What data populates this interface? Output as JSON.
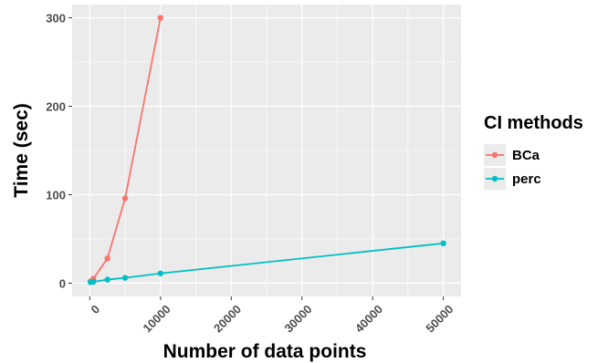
{
  "chart_data": {
    "type": "line",
    "xlabel": "Number of data points",
    "ylabel": "Time (sec)",
    "xlim": [
      -2500,
      52500
    ],
    "ylim": [
      -15,
      315
    ],
    "x_ticks": [
      0,
      10000,
      20000,
      30000,
      40000,
      50000
    ],
    "y_ticks": [
      0,
      100,
      200,
      300
    ],
    "grid": true,
    "legend": {
      "title": "CI methods",
      "placement": "right"
    },
    "series": [
      {
        "name": "BCa",
        "color": "#f8766d",
        "points": [
          [
            100,
            2
          ],
          [
            500,
            5
          ],
          [
            2500,
            28
          ],
          [
            5000,
            96
          ],
          [
            10000,
            300
          ]
        ]
      },
      {
        "name": "perc",
        "color": "#00bfc4",
        "points": [
          [
            100,
            1
          ],
          [
            500,
            1.5
          ],
          [
            2500,
            4
          ],
          [
            5000,
            6
          ],
          [
            10000,
            11
          ],
          [
            50000,
            45
          ]
        ]
      }
    ]
  }
}
